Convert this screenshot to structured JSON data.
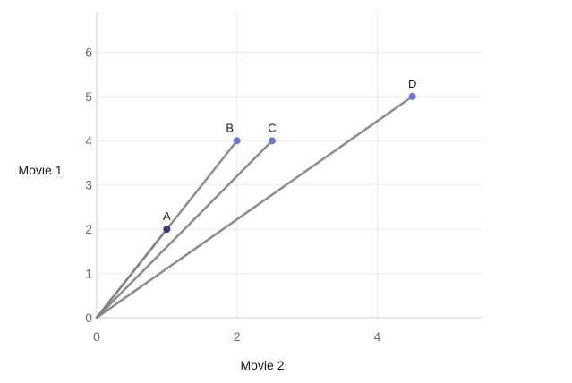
{
  "chart_data": {
    "type": "scatter",
    "title": "",
    "xlabel": "Movie 2",
    "ylabel": "Movie 1",
    "xlim": [
      0,
      5.5
    ],
    "ylim": [
      0,
      6.9
    ],
    "x_ticks": [
      0,
      2,
      4
    ],
    "y_ticks": [
      0,
      1,
      2,
      3,
      4,
      5,
      6
    ],
    "grid": true,
    "origin": [
      0,
      0
    ],
    "points": [
      {
        "label": "A",
        "x": 1,
        "y": 2
      },
      {
        "label": "B",
        "x": 2,
        "y": 4
      },
      {
        "label": "C",
        "x": 2.5,
        "y": 4
      },
      {
        "label": "D",
        "x": 4.5,
        "y": 5
      }
    ],
    "colors": {
      "point": "#6b72d8",
      "point_dark": "#353a7a",
      "line": "#7f7f7f",
      "grid": "#ebebeb",
      "axis": "#cfcfcf"
    }
  }
}
